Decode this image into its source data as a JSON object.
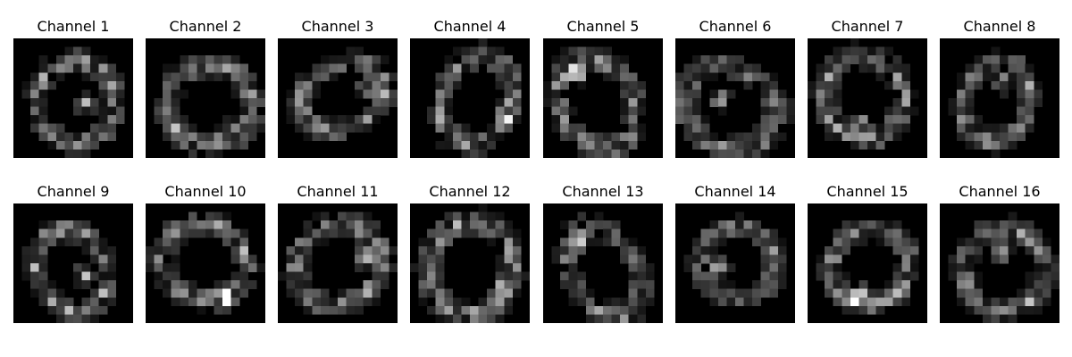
{
  "chart_data": {
    "type": "heatmap",
    "colormap": "gray",
    "background_color": "#000000",
    "grid": false,
    "layout": {
      "rows": 2,
      "cols": 8
    },
    "panels": [
      {
        "title": "Channel 1"
      },
      {
        "title": "Channel 2"
      },
      {
        "title": "Channel 3"
      },
      {
        "title": "Channel 4"
      },
      {
        "title": "Channel 5"
      },
      {
        "title": "Channel 6"
      },
      {
        "title": "Channel 7"
      },
      {
        "title": "Channel 8"
      },
      {
        "title": "Channel 9"
      },
      {
        "title": "Channel 10"
      },
      {
        "title": "Channel 11"
      },
      {
        "title": "Channel 12"
      },
      {
        "title": "Channel 13"
      },
      {
        "title": "Channel 14"
      },
      {
        "title": "Channel 15"
      },
      {
        "title": "Channel 16"
      }
    ]
  }
}
